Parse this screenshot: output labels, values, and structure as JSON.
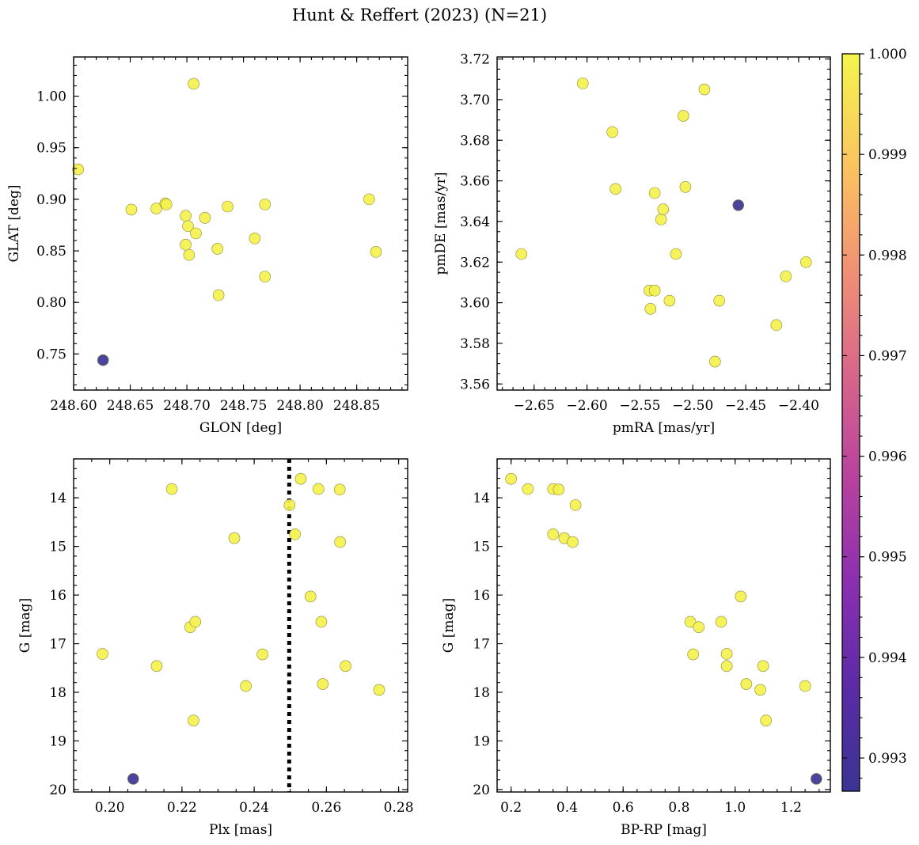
{
  "figure": {
    "title": "Hunt & Reffert (2023) (N=21)"
  },
  "colorbar": {
    "range": [
      0.99267,
      1.0
    ],
    "ticks": [
      0.993,
      0.994,
      0.995,
      0.996,
      0.997,
      0.998,
      0.999,
      1.0
    ],
    "tick_labels": [
      "0.993",
      "0.994",
      "0.995",
      "0.996",
      "0.997",
      "0.998",
      "0.999",
      "1.000"
    ],
    "colormap": "plasma"
  },
  "chart_data": [
    {
      "id": "glon-glat",
      "type": "scatter",
      "xlabel": "GLON [deg]",
      "ylabel": "GLAT [deg]",
      "xlim": [
        248.6,
        248.895
      ],
      "ylim": [
        0.715,
        1.038
      ],
      "x_invert": false,
      "y_invert": false,
      "xticks": [
        248.6,
        248.65,
        248.7,
        248.75,
        248.8,
        248.85
      ],
      "xtick_labels": [
        "248.60",
        "248.65",
        "248.70",
        "248.75",
        "248.80",
        "248.85"
      ],
      "yticks": [
        0.75,
        0.8,
        0.85,
        0.9,
        0.95,
        1.0
      ],
      "ytick_labels": [
        "0.75",
        "0.80",
        "0.85",
        "0.90",
        "0.95",
        "1.00"
      ],
      "points": [
        {
          "x": 248.604,
          "y": 0.929,
          "c": 0.9999
        },
        {
          "x": 248.626,
          "y": 0.744,
          "c": 0.9927
        },
        {
          "x": 248.651,
          "y": 0.89,
          "c": 0.9999
        },
        {
          "x": 248.673,
          "y": 0.891,
          "c": 0.9999
        },
        {
          "x": 248.681,
          "y": 0.896,
          "c": 0.9999
        },
        {
          "x": 248.682,
          "y": 0.895,
          "c": 0.9999
        },
        {
          "x": 248.699,
          "y": 0.884,
          "c": 0.9999
        },
        {
          "x": 248.699,
          "y": 0.856,
          "c": 0.9999
        },
        {
          "x": 248.701,
          "y": 0.874,
          "c": 0.9999
        },
        {
          "x": 248.702,
          "y": 0.846,
          "c": 0.9999
        },
        {
          "x": 248.706,
          "y": 1.012,
          "c": 0.9999
        },
        {
          "x": 248.708,
          "y": 0.867,
          "c": 0.9999
        },
        {
          "x": 248.716,
          "y": 0.882,
          "c": 0.9999
        },
        {
          "x": 248.727,
          "y": 0.852,
          "c": 0.9999
        },
        {
          "x": 248.728,
          "y": 0.807,
          "c": 0.9999
        },
        {
          "x": 248.736,
          "y": 0.893,
          "c": 0.9999
        },
        {
          "x": 248.76,
          "y": 0.862,
          "c": 0.9999
        },
        {
          "x": 248.769,
          "y": 0.895,
          "c": 0.9999
        },
        {
          "x": 248.769,
          "y": 0.825,
          "c": 0.9999
        },
        {
          "x": 248.861,
          "y": 0.9,
          "c": 0.9999
        },
        {
          "x": 248.867,
          "y": 0.849,
          "c": 0.9999
        }
      ]
    },
    {
      "id": "pmra-pmde",
      "type": "scatter",
      "xlabel": "pmRA [mas/yr]",
      "ylabel": "pmDE [mas/yr]",
      "xlim": [
        -2.685,
        -2.37
      ],
      "ylim": [
        3.557,
        3.721
      ],
      "x_invert": false,
      "y_invert": false,
      "xticks": [
        -2.65,
        -2.6,
        -2.55,
        -2.5,
        -2.45,
        -2.4
      ],
      "xtick_labels": [
        "−2.65",
        "−2.60",
        "−2.55",
        "−2.50",
        "−2.45",
        "−2.40"
      ],
      "yticks": [
        3.56,
        3.58,
        3.6,
        3.62,
        3.64,
        3.66,
        3.68,
        3.7,
        3.72
      ],
      "ytick_labels": [
        "3.56",
        "3.58",
        "3.60",
        "3.62",
        "3.64",
        "3.66",
        "3.68",
        "3.70",
        "3.72"
      ],
      "points": [
        {
          "x": -2.662,
          "y": 3.624,
          "c": 0.9999
        },
        {
          "x": -2.604,
          "y": 3.708,
          "c": 0.9999
        },
        {
          "x": -2.576,
          "y": 3.684,
          "c": 0.9999
        },
        {
          "x": -2.573,
          "y": 3.656,
          "c": 0.9999
        },
        {
          "x": -2.541,
          "y": 3.606,
          "c": 0.9999
        },
        {
          "x": -2.54,
          "y": 3.597,
          "c": 0.9999
        },
        {
          "x": -2.536,
          "y": 3.654,
          "c": 0.9999
        },
        {
          "x": -2.536,
          "y": 3.606,
          "c": 0.9999
        },
        {
          "x": -2.53,
          "y": 3.641,
          "c": 0.9999
        },
        {
          "x": -2.528,
          "y": 3.646,
          "c": 0.9999
        },
        {
          "x": -2.522,
          "y": 3.601,
          "c": 0.9999
        },
        {
          "x": -2.516,
          "y": 3.624,
          "c": 0.9999
        },
        {
          "x": -2.509,
          "y": 3.692,
          "c": 0.9999
        },
        {
          "x": -2.507,
          "y": 3.657,
          "c": 0.9999
        },
        {
          "x": -2.489,
          "y": 3.705,
          "c": 0.9999
        },
        {
          "x": -2.479,
          "y": 3.571,
          "c": 0.9999
        },
        {
          "x": -2.475,
          "y": 3.601,
          "c": 0.9999
        },
        {
          "x": -2.457,
          "y": 3.648,
          "c": 0.9927
        },
        {
          "x": -2.421,
          "y": 3.589,
          "c": 0.9999
        },
        {
          "x": -2.412,
          "y": 3.613,
          "c": 0.9999
        },
        {
          "x": -2.393,
          "y": 3.62,
          "c": 0.9999
        }
      ]
    },
    {
      "id": "plx-g",
      "type": "scatter",
      "xlabel": "Plx [mas]",
      "ylabel": "G [mag]",
      "xlim": [
        0.19,
        0.2825
      ],
      "ylim": [
        13.2,
        20.05
      ],
      "x_invert": false,
      "y_invert": true,
      "xticks": [
        0.2,
        0.22,
        0.24,
        0.26,
        0.28
      ],
      "xtick_labels": [
        "0.20",
        "0.22",
        "0.24",
        "0.26",
        "0.28"
      ],
      "yticks": [
        14,
        15,
        16,
        17,
        18,
        19,
        20
      ],
      "ytick_labels": [
        "14",
        "15",
        "16",
        "17",
        "18",
        "19",
        "20"
      ],
      "reference_line": {
        "x": 0.2497,
        "style": "dotted"
      },
      "points": [
        {
          "x": 0.198,
          "y": 17.21,
          "c": 0.9999
        },
        {
          "x": 0.2065,
          "y": 19.78,
          "c": 0.9927
        },
        {
          "x": 0.213,
          "y": 17.46,
          "c": 0.9999
        },
        {
          "x": 0.2172,
          "y": 13.82,
          "c": 0.9999
        },
        {
          "x": 0.2223,
          "y": 16.66,
          "c": 0.9999
        },
        {
          "x": 0.2232,
          "y": 18.58,
          "c": 0.9999
        },
        {
          "x": 0.2237,
          "y": 16.55,
          "c": 0.9999
        },
        {
          "x": 0.2345,
          "y": 14.83,
          "c": 0.9999
        },
        {
          "x": 0.2377,
          "y": 17.87,
          "c": 0.9999
        },
        {
          "x": 0.2423,
          "y": 17.22,
          "c": 0.9999
        },
        {
          "x": 0.2498,
          "y": 14.15,
          "c": 0.9999
        },
        {
          "x": 0.2513,
          "y": 14.75,
          "c": 0.9999
        },
        {
          "x": 0.2529,
          "y": 13.61,
          "c": 0.9999
        },
        {
          "x": 0.2556,
          "y": 16.03,
          "c": 0.9999
        },
        {
          "x": 0.2578,
          "y": 13.82,
          "c": 0.9999
        },
        {
          "x": 0.2586,
          "y": 16.55,
          "c": 0.9999
        },
        {
          "x": 0.259,
          "y": 17.83,
          "c": 0.9999
        },
        {
          "x": 0.2637,
          "y": 13.83,
          "c": 0.9999
        },
        {
          "x": 0.2638,
          "y": 14.91,
          "c": 0.9999
        },
        {
          "x": 0.2653,
          "y": 17.46,
          "c": 0.9999
        },
        {
          "x": 0.2746,
          "y": 17.95,
          "c": 0.9999
        }
      ]
    },
    {
      "id": "bprp-g",
      "type": "scatter",
      "xlabel": "BP-RP [mag]",
      "ylabel": "G [mag]",
      "xlim": [
        0.15,
        1.34
      ],
      "ylim": [
        13.2,
        20.05
      ],
      "x_invert": false,
      "y_invert": true,
      "xticks": [
        0.2,
        0.4,
        0.6,
        0.8,
        1.0,
        1.2
      ],
      "xtick_labels": [
        "0.2",
        "0.4",
        "0.6",
        "0.8",
        "1.0",
        "1.2"
      ],
      "yticks": [
        14,
        15,
        16,
        17,
        18,
        19,
        20
      ],
      "ytick_labels": [
        "14",
        "15",
        "16",
        "17",
        "18",
        "19",
        "20"
      ],
      "points": [
        {
          "x": 0.2,
          "y": 13.61,
          "c": 0.9999
        },
        {
          "x": 0.26,
          "y": 13.82,
          "c": 0.9999
        },
        {
          "x": 0.35,
          "y": 13.82,
          "c": 0.9999
        },
        {
          "x": 0.37,
          "y": 13.83,
          "c": 0.9999
        },
        {
          "x": 0.43,
          "y": 14.15,
          "c": 0.9999
        },
        {
          "x": 0.35,
          "y": 14.75,
          "c": 0.9999
        },
        {
          "x": 0.39,
          "y": 14.83,
          "c": 0.9999
        },
        {
          "x": 0.42,
          "y": 14.91,
          "c": 0.9999
        },
        {
          "x": 1.02,
          "y": 16.03,
          "c": 0.9999
        },
        {
          "x": 0.84,
          "y": 16.55,
          "c": 0.9999
        },
        {
          "x": 0.95,
          "y": 16.55,
          "c": 0.9999
        },
        {
          "x": 0.87,
          "y": 16.66,
          "c": 0.9999
        },
        {
          "x": 0.85,
          "y": 17.22,
          "c": 0.9999
        },
        {
          "x": 0.97,
          "y": 17.21,
          "c": 0.9999
        },
        {
          "x": 0.97,
          "y": 17.46,
          "c": 0.9999
        },
        {
          "x": 1.1,
          "y": 17.46,
          "c": 0.9999
        },
        {
          "x": 1.04,
          "y": 17.83,
          "c": 0.9999
        },
        {
          "x": 1.09,
          "y": 17.95,
          "c": 0.9999
        },
        {
          "x": 1.25,
          "y": 17.87,
          "c": 0.9999
        },
        {
          "x": 1.11,
          "y": 18.58,
          "c": 0.9999
        },
        {
          "x": 1.29,
          "y": 19.78,
          "c": 0.9927
        }
      ]
    }
  ]
}
